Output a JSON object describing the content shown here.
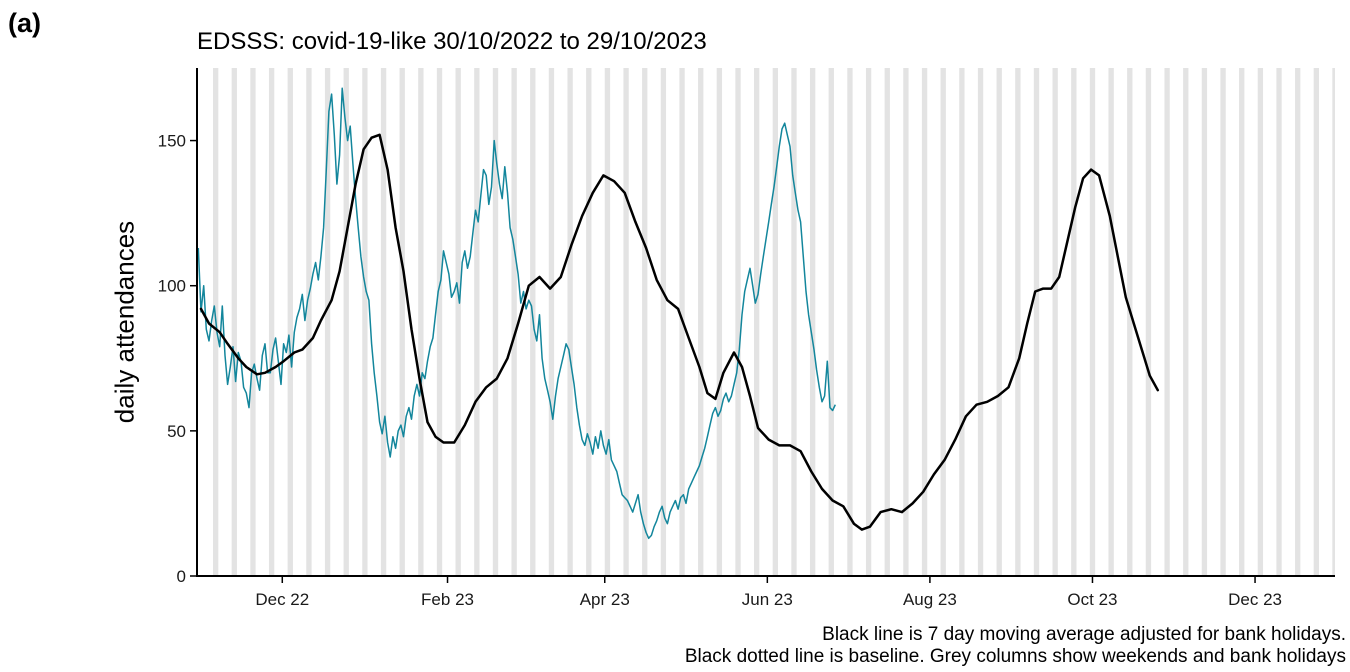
{
  "panel_label": "(a)",
  "caption": {
    "line1": "Black line is 7 day moving average adjusted for bank holidays.",
    "line2": "Black dotted line is baseline. Grey columns show weekends and bank holidays"
  },
  "colors": {
    "daily_line": "#13869c",
    "average_line": "#000000",
    "weekend_column": "#e3e3e3",
    "axis": "#000000"
  },
  "chart_data": {
    "type": "line",
    "title": "EDSSS: covid-19-like 30/10/2022 to 29/10/2023",
    "xlabel": "",
    "ylabel": "daily attendances",
    "x_range": [
      "2022-10-30",
      "2023-12-31"
    ],
    "x_ticks": [
      {
        "date": "2022-12-01",
        "label": "Dec 22"
      },
      {
        "date": "2023-02-01",
        "label": "Feb 23"
      },
      {
        "date": "2023-04-01",
        "label": "Apr 23"
      },
      {
        "date": "2023-06-01",
        "label": "Jun 23"
      },
      {
        "date": "2023-08-01",
        "label": "Aug 23"
      },
      {
        "date": "2023-10-01",
        "label": "Oct 23"
      },
      {
        "date": "2023-12-01",
        "label": "Dec 23"
      }
    ],
    "ylim": [
      0,
      175
    ],
    "y_ticks": [
      0,
      50,
      100,
      150
    ],
    "grid": false,
    "weekend_columns": {
      "from": "2022-10-30",
      "to": "2023-12-31"
    },
    "series": [
      {
        "role": "7-day moving average",
        "color": "#000000",
        "points": [
          [
            "2022-10-31",
            92
          ],
          [
            "2022-11-03",
            87
          ],
          [
            "2022-11-07",
            84
          ],
          [
            "2022-11-10",
            80
          ],
          [
            "2022-11-14",
            75
          ],
          [
            "2022-11-17",
            72
          ],
          [
            "2022-11-21",
            69.5
          ],
          [
            "2022-11-24",
            70
          ],
          [
            "2022-11-28",
            72
          ],
          [
            "2022-12-01",
            74
          ],
          [
            "2022-12-05",
            77
          ],
          [
            "2022-12-08",
            78
          ],
          [
            "2022-12-12",
            82
          ],
          [
            "2022-12-15",
            88
          ],
          [
            "2022-12-19",
            95
          ],
          [
            "2022-12-22",
            105
          ],
          [
            "2022-12-25",
            120
          ],
          [
            "2022-12-28",
            135
          ],
          [
            "2022-12-31",
            147
          ],
          [
            "2023-01-03",
            151
          ],
          [
            "2023-01-06",
            152
          ],
          [
            "2023-01-09",
            140
          ],
          [
            "2023-01-12",
            120
          ],
          [
            "2023-01-15",
            105
          ],
          [
            "2023-01-18",
            85
          ],
          [
            "2023-01-21",
            68
          ],
          [
            "2023-01-24",
            53
          ],
          [
            "2023-01-27",
            48
          ],
          [
            "2023-01-30",
            46
          ],
          [
            "2023-02-03",
            46
          ],
          [
            "2023-02-07",
            52
          ],
          [
            "2023-02-11",
            60
          ],
          [
            "2023-02-15",
            65
          ],
          [
            "2023-02-19",
            68
          ],
          [
            "2023-02-23",
            75
          ],
          [
            "2023-02-27",
            87
          ],
          [
            "2023-03-03",
            100
          ],
          [
            "2023-03-07",
            103
          ],
          [
            "2023-03-11",
            99
          ],
          [
            "2023-03-15",
            103
          ],
          [
            "2023-03-19",
            114
          ],
          [
            "2023-03-23",
            124
          ],
          [
            "2023-03-27",
            132
          ],
          [
            "2023-03-31",
            138
          ],
          [
            "2023-04-04",
            136
          ],
          [
            "2023-04-08",
            132
          ],
          [
            "2023-04-12",
            122
          ],
          [
            "2023-04-16",
            113
          ],
          [
            "2023-04-20",
            102
          ],
          [
            "2023-04-24",
            95
          ],
          [
            "2023-04-28",
            92
          ],
          [
            "2023-05-02",
            82
          ],
          [
            "2023-05-06",
            72
          ],
          [
            "2023-05-09",
            63
          ],
          [
            "2023-05-12",
            61
          ],
          [
            "2023-05-15",
            70
          ],
          [
            "2023-05-19",
            77
          ],
          [
            "2023-05-22",
            72
          ],
          [
            "2023-05-25",
            62
          ],
          [
            "2023-05-28",
            51
          ],
          [
            "2023-06-01",
            47
          ],
          [
            "2023-06-05",
            45
          ],
          [
            "2023-06-09",
            45
          ],
          [
            "2023-06-13",
            43
          ],
          [
            "2023-06-17",
            36
          ],
          [
            "2023-06-21",
            30
          ],
          [
            "2023-06-25",
            26
          ],
          [
            "2023-06-29",
            24
          ],
          [
            "2023-07-03",
            18
          ],
          [
            "2023-07-06",
            16
          ],
          [
            "2023-07-09",
            17
          ],
          [
            "2023-07-13",
            22
          ],
          [
            "2023-07-17",
            23
          ],
          [
            "2023-07-21",
            22
          ],
          [
            "2023-07-25",
            25
          ],
          [
            "2023-07-29",
            29
          ],
          [
            "2023-08-02",
            35
          ],
          [
            "2023-08-06",
            40
          ],
          [
            "2023-08-10",
            47
          ],
          [
            "2023-08-14",
            55
          ],
          [
            "2023-08-18",
            59
          ],
          [
            "2023-08-22",
            60
          ],
          [
            "2023-08-26",
            62
          ],
          [
            "2023-08-30",
            65
          ],
          [
            "2023-09-03",
            75
          ],
          [
            "2023-09-06",
            87
          ],
          [
            "2023-09-09",
            98
          ],
          [
            "2023-09-12",
            99
          ],
          [
            "2023-09-15",
            99
          ],
          [
            "2023-09-18",
            103
          ],
          [
            "2023-09-21",
            115
          ],
          [
            "2023-09-24",
            127
          ],
          [
            "2023-09-27",
            137
          ],
          [
            "2023-09-30",
            140
          ],
          [
            "2023-10-03",
            138
          ],
          [
            "2023-10-07",
            124
          ],
          [
            "2023-10-10",
            110
          ],
          [
            "2023-10-13",
            96
          ],
          [
            "2023-10-16",
            87
          ],
          [
            "2023-10-19",
            78
          ],
          [
            "2023-10-22",
            69
          ],
          [
            "2023-10-25",
            64
          ]
        ]
      },
      {
        "role": "daily attendances",
        "color": "#13869c",
        "start_date": "2022-10-30",
        "values": [
          113,
          91,
          100,
          85,
          81,
          88,
          93,
          84,
          79,
          93,
          76,
          66,
          72,
          79,
          67,
          77,
          74,
          65,
          63,
          58,
          70,
          73,
          68,
          64,
          76,
          80,
          70,
          70,
          78,
          82,
          74,
          66,
          80,
          77,
          83,
          72,
          84,
          89,
          92,
          97,
          88,
          95,
          99,
          104,
          108,
          102,
          110,
          120,
          140,
          160,
          166,
          152,
          135,
          145,
          168,
          158,
          150,
          155,
          142,
          130,
          120,
          110,
          103,
          98,
          95,
          80,
          70,
          62,
          53,
          49,
          55,
          46,
          41,
          48,
          44,
          50,
          52,
          48,
          55,
          58,
          54,
          62,
          66,
          62,
          70,
          68,
          74,
          79,
          82,
          90,
          98,
          102,
          112,
          108,
          104,
          96,
          98,
          101,
          94,
          108,
          112,
          106,
          110,
          118,
          126,
          122,
          131,
          140,
          138,
          128,
          134,
          150,
          142,
          135,
          130,
          141,
          132,
          120,
          116,
          110,
          104,
          94,
          98,
          92,
          95,
          93,
          85,
          81,
          90,
          75,
          68,
          64,
          60,
          54,
          62,
          68,
          72,
          76,
          80,
          78,
          72,
          66,
          58,
          52,
          47,
          45,
          49,
          46,
          42,
          48,
          44,
          50,
          45,
          42,
          47,
          40,
          38,
          36,
          32,
          28,
          27,
          26,
          24,
          22,
          25,
          28,
          22,
          18,
          15,
          13,
          14,
          17,
          19,
          22,
          24,
          20,
          18,
          22,
          24,
          26,
          23,
          27,
          28,
          25,
          30,
          32,
          34,
          36,
          38,
          41,
          44,
          48,
          52,
          56,
          58,
          55,
          57,
          61,
          63,
          60,
          62,
          66,
          70,
          78,
          90,
          98,
          102,
          106,
          100,
          94,
          97,
          104,
          110,
          116,
          122,
          128,
          134,
          141,
          148,
          154,
          156,
          152,
          148,
          138,
          132,
          126,
          122,
          110,
          98,
          90,
          84,
          78,
          71,
          65,
          60,
          62,
          74,
          58,
          57,
          59
        ]
      }
    ]
  }
}
